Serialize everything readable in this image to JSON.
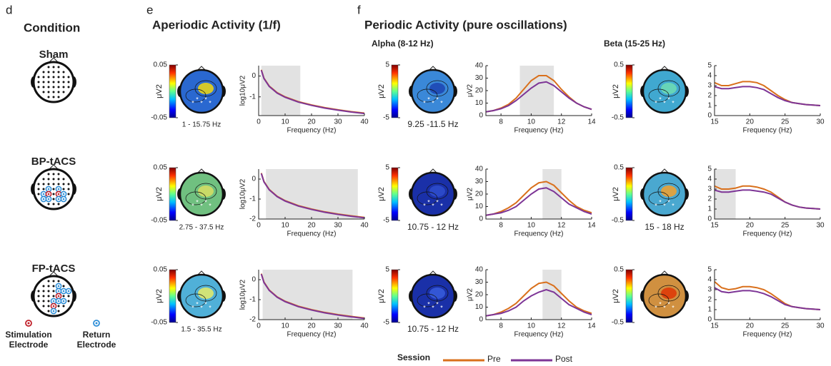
{
  "panels": {
    "d": "d",
    "e": "e",
    "f": "f"
  },
  "condition": {
    "title": "Condition",
    "items": [
      "Sham",
      "BP-tACS",
      "FP-tACS"
    ],
    "electrodes": [
      "Stimulation Electrode",
      "Return Electrode"
    ]
  },
  "headings": {
    "aperiodic": "Aperiodic Activity (1/f)",
    "periodic": "Periodic Activity (pure oscillations)",
    "alpha": "Alpha (8-12 Hz)",
    "beta": "Beta (15-25 Hz)"
  },
  "legend": {
    "title": "Session",
    "series": [
      {
        "name": "Pre",
        "color": "#d9701c"
      },
      {
        "name": "Post",
        "color": "#7d3596"
      }
    ]
  },
  "topomaps": [
    {
      "cticks": [
        -0.05,
        0.05
      ],
      "clabel": "μV2",
      "label": "1 - 15.75 Hz"
    },
    {
      "cticks": [
        -5,
        5
      ],
      "clabel": "μV2",
      "label": "9.25 -11.5 Hz"
    },
    {
      "cticks": [
        -0.5,
        0.5
      ],
      "clabel": "μV2"
    },
    {
      "cticks": [
        -0.05,
        0.05
      ],
      "clabel": "μV2",
      "label": "2.75 - 37.5 Hz"
    },
    {
      "cticks": [
        -5,
        5
      ],
      "clabel": "μV2",
      "label": "10.75 - 12 Hz"
    },
    {
      "cticks": [
        -0.5,
        0.5
      ],
      "clabel": "μV2",
      "label": "15 - 18 Hz"
    },
    {
      "cticks": [
        -0.05,
        0.05
      ],
      "clabel": "μV2",
      "label": "1.5 - 35.5 Hz"
    },
    {
      "cticks": [
        -5,
        5
      ],
      "clabel": "μV2",
      "label": "10.75 - 12 Hz"
    },
    {
      "cticks": [
        -0.5,
        0.5
      ],
      "clabel": "μV2"
    }
  ],
  "chart_data": [
    {
      "type": "line",
      "xlabel": "Frequency (Hz)",
      "ylabel": "log10μV2",
      "x": [
        1,
        2,
        4,
        7,
        10,
        15,
        20,
        25,
        30,
        35,
        40
      ],
      "xlim": [
        0,
        40
      ],
      "xticks": [
        0,
        10,
        20,
        30,
        40
      ],
      "ylim": [
        -1.9,
        0.5
      ],
      "yticks": [
        -1,
        0
      ],
      "shade": [
        1,
        15.75
      ],
      "series": [
        {
          "values": [
            0.3,
            -0.1,
            -0.48,
            -0.8,
            -1.0,
            -1.23,
            -1.39,
            -1.52,
            -1.62,
            -1.71,
            -1.78
          ]
        },
        {
          "values": [
            0.28,
            -0.12,
            -0.5,
            -0.82,
            -1.02,
            -1.25,
            -1.41,
            -1.54,
            -1.64,
            -1.73,
            -1.8
          ]
        }
      ]
    },
    {
      "type": "line",
      "xlabel": "Frequency (Hz)",
      "ylabel": "μV2",
      "x": [
        7,
        7.5,
        8,
        8.5,
        9,
        9.5,
        10,
        10.5,
        11,
        11.5,
        12,
        12.5,
        13,
        13.5,
        14
      ],
      "xlim": [
        7,
        14
      ],
      "xticks": [
        8,
        10,
        12,
        14
      ],
      "ylim": [
        0,
        40
      ],
      "yticks": [
        0,
        10,
        20,
        30,
        40
      ],
      "shade": [
        9.25,
        11.5
      ],
      "series": [
        {
          "values": [
            3,
            4,
            6,
            9,
            14,
            21,
            28,
            32,
            32,
            28,
            21,
            15,
            10,
            7,
            5
          ]
        },
        {
          "values": [
            3,
            4,
            5.5,
            8,
            12,
            17,
            22,
            26,
            27,
            24,
            19,
            14,
            10,
            7,
            5
          ]
        }
      ]
    },
    {
      "type": "line",
      "xlabel": "Frequency (Hz)",
      "x": [
        15,
        16,
        17,
        18,
        19,
        20,
        21,
        22,
        23,
        24,
        25,
        26,
        27,
        28,
        29,
        30
      ],
      "xlim": [
        15,
        30
      ],
      "xticks": [
        15,
        20,
        25,
        30
      ],
      "ylim": [
        0,
        5
      ],
      "yticks": [
        0,
        1,
        2,
        3,
        4,
        5
      ],
      "series": [
        {
          "values": [
            3.3,
            3.0,
            3.0,
            3.2,
            3.4,
            3.4,
            3.3,
            3.0,
            2.5,
            2.0,
            1.6,
            1.3,
            1.2,
            1.1,
            1.05,
            1.0
          ]
        },
        {
          "values": [
            2.9,
            2.7,
            2.7,
            2.8,
            2.9,
            2.9,
            2.8,
            2.6,
            2.2,
            1.8,
            1.5,
            1.3,
            1.2,
            1.1,
            1.05,
            1.0
          ]
        }
      ]
    },
    {
      "type": "line",
      "xlabel": "Frequency (Hz)",
      "ylabel": "log10μV2",
      "x": [
        1,
        2,
        4,
        7,
        10,
        15,
        20,
        25,
        30,
        35,
        40
      ],
      "xlim": [
        0,
        40
      ],
      "xticks": [
        0,
        10,
        20,
        30,
        40
      ],
      "ylim": [
        -2,
        0.5
      ],
      "yticks": [
        -2,
        -1,
        0
      ],
      "shade": [
        2.75,
        37.5
      ],
      "series": [
        {
          "values": [
            0.3,
            -0.12,
            -0.52,
            -0.86,
            -1.08,
            -1.33,
            -1.5,
            -1.64,
            -1.75,
            -1.84,
            -1.92
          ]
        },
        {
          "values": [
            0.28,
            -0.14,
            -0.54,
            -0.88,
            -1.1,
            -1.35,
            -1.52,
            -1.66,
            -1.77,
            -1.86,
            -1.94
          ]
        }
      ]
    },
    {
      "type": "line",
      "xlabel": "Frequency (Hz)",
      "ylabel": "μV2",
      "x": [
        7,
        7.5,
        8,
        8.5,
        9,
        9.5,
        10,
        10.5,
        11,
        11.5,
        12,
        12.5,
        13,
        13.5,
        14
      ],
      "xlim": [
        7,
        14
      ],
      "xticks": [
        8,
        10,
        12,
        14
      ],
      "ylim": [
        0,
        40
      ],
      "yticks": [
        0,
        10,
        20,
        30,
        40
      ],
      "shade": [
        10.75,
        12
      ],
      "series": [
        {
          "values": [
            3,
            4,
            6,
            9,
            13,
            19,
            25,
            29,
            30,
            27,
            21,
            15,
            10,
            7,
            5
          ]
        },
        {
          "values": [
            3,
            4,
            5,
            7,
            10,
            15,
            20,
            24,
            25,
            22,
            17,
            12,
            9,
            6,
            4
          ]
        }
      ]
    },
    {
      "type": "line",
      "xlabel": "Frequency (Hz)",
      "x": [
        15,
        16,
        17,
        18,
        19,
        20,
        21,
        22,
        23,
        24,
        25,
        26,
        27,
        28,
        29,
        30
      ],
      "xlim": [
        15,
        30
      ],
      "xticks": [
        15,
        20,
        25,
        30
      ],
      "ylim": [
        0,
        5
      ],
      "yticks": [
        0,
        1,
        2,
        3,
        4,
        5
      ],
      "shade": [
        15,
        18
      ],
      "series": [
        {
          "values": [
            3.3,
            3.0,
            3.0,
            3.1,
            3.3,
            3.3,
            3.2,
            3.0,
            2.7,
            2.2,
            1.7,
            1.4,
            1.2,
            1.1,
            1.05,
            1.0
          ]
        },
        {
          "values": [
            2.9,
            2.7,
            2.7,
            2.8,
            2.9,
            2.9,
            2.8,
            2.7,
            2.5,
            2.1,
            1.7,
            1.4,
            1.2,
            1.1,
            1.05,
            1.0
          ]
        }
      ]
    },
    {
      "type": "line",
      "xlabel": "Frequency (Hz)",
      "ylabel": "log10μV2",
      "x": [
        1,
        2,
        4,
        7,
        10,
        15,
        20,
        25,
        30,
        35,
        40
      ],
      "xlim": [
        0,
        40
      ],
      "xticks": [
        0,
        10,
        20,
        30,
        40
      ],
      "ylim": [
        -2,
        0.5
      ],
      "yticks": [
        -2,
        -1,
        0
      ],
      "shade": [
        1.5,
        35.5
      ],
      "series": [
        {
          "values": [
            0.3,
            -0.12,
            -0.52,
            -0.86,
            -1.08,
            -1.33,
            -1.5,
            -1.64,
            -1.75,
            -1.84,
            -1.92
          ]
        },
        {
          "values": [
            0.28,
            -0.14,
            -0.54,
            -0.88,
            -1.1,
            -1.35,
            -1.52,
            -1.66,
            -1.77,
            -1.86,
            -1.94
          ]
        }
      ]
    },
    {
      "type": "line",
      "xlabel": "Frequency (Hz)",
      "ylabel": "μV2",
      "x": [
        7,
        7.5,
        8,
        8.5,
        9,
        9.5,
        10,
        10.5,
        11,
        11.5,
        12,
        12.5,
        13,
        13.5,
        14
      ],
      "xlim": [
        7,
        14
      ],
      "xticks": [
        8,
        10,
        12,
        14
      ],
      "ylim": [
        0,
        40
      ],
      "yticks": [
        0,
        10,
        20,
        30,
        40
      ],
      "shade": [
        10.75,
        12
      ],
      "series": [
        {
          "values": [
            3,
            4,
            6,
            9,
            13,
            19,
            25,
            29,
            30,
            27,
            21,
            15,
            10,
            7,
            5
          ]
        },
        {
          "values": [
            3,
            4,
            5,
            7,
            10,
            15,
            19,
            22,
            24,
            22,
            17,
            12,
            9,
            6,
            4
          ]
        }
      ]
    },
    {
      "type": "line",
      "xlabel": "Frequency (Hz)",
      "x": [
        15,
        16,
        17,
        18,
        19,
        20,
        21,
        22,
        23,
        24,
        25,
        26,
        27,
        28,
        29,
        30
      ],
      "xlim": [
        15,
        30
      ],
      "xticks": [
        15,
        20,
        25,
        30
      ],
      "ylim": [
        0,
        5
      ],
      "yticks": [
        0,
        1,
        2,
        3,
        4,
        5
      ],
      "series": [
        {
          "values": [
            3.8,
            3.2,
            3.0,
            3.1,
            3.3,
            3.3,
            3.2,
            3.0,
            2.6,
            2.1,
            1.6,
            1.3,
            1.2,
            1.1,
            1.05,
            1.0
          ]
        },
        {
          "values": [
            3.2,
            2.8,
            2.7,
            2.8,
            2.9,
            2.9,
            2.8,
            2.6,
            2.3,
            1.9,
            1.5,
            1.3,
            1.2,
            1.1,
            1.05,
            1.0
          ]
        }
      ]
    }
  ]
}
